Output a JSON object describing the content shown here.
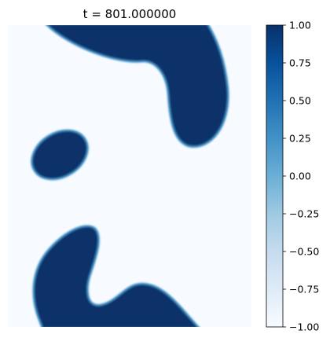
{
  "chart_data": {
    "type": "heatmap",
    "title": "t = 801.000000",
    "field_description": "two-phase field with values near -1 (light) and +1 (dark blue) separated by thin diffuse interfaces",
    "colormap": "Blues",
    "colorbar": {
      "range": [
        -1.0,
        1.0
      ],
      "ticks": [
        1.0,
        0.75,
        0.5,
        0.25,
        0.0,
        -0.25,
        -0.5,
        -0.75,
        -1.0
      ],
      "tick_labels": [
        "1.00",
        "0.75",
        "0.50",
        "0.25",
        "0.00",
        "−0.25",
        "−0.50",
        "−0.75",
        "−1.00"
      ],
      "placement": "right"
    },
    "phase_values": {
      "background": -1.0,
      "domains": 1.0
    },
    "domains": [
      {
        "name": "upper-right-blob",
        "value": 1.0
      },
      {
        "name": "small-left-ellipse",
        "value": 1.0
      },
      {
        "name": "bottom-left-blob",
        "value": 1.0
      }
    ],
    "axes_visible": false,
    "grid": false,
    "colors": {
      "low": "#f7fbff",
      "high": "#08306b",
      "interface": "#4292c6"
    }
  }
}
